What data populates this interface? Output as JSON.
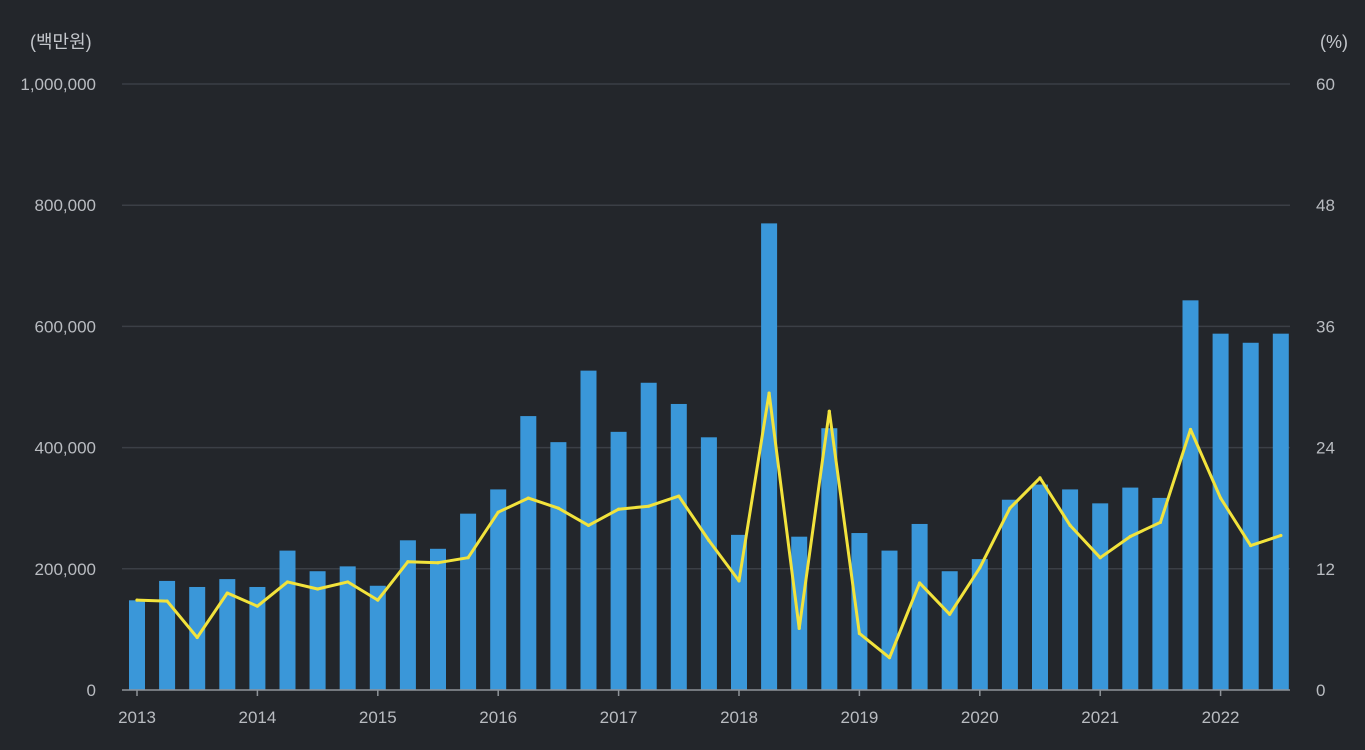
{
  "chart_data": {
    "type": "bar+line",
    "left_unit": "(백만원)",
    "right_unit": "(%)",
    "left_ylim": [
      0,
      1000000
    ],
    "right_ylim": [
      0,
      60
    ],
    "left_ticks": [
      "0",
      "200,000",
      "400,000",
      "600,000",
      "800,000",
      "1,000,000"
    ],
    "right_ticks": [
      "0",
      "12",
      "24",
      "36",
      "48",
      "60"
    ],
    "year_labels": [
      "2013",
      "2014",
      "2015",
      "2016",
      "2017",
      "2018",
      "2019",
      "2020",
      "2021",
      "2022"
    ],
    "quarters": [
      "2013Q1",
      "2013Q2",
      "2013Q3",
      "2013Q4",
      "2014Q1",
      "2014Q2",
      "2014Q3",
      "2014Q4",
      "2015Q1",
      "2015Q2",
      "2015Q3",
      "2015Q4",
      "2016Q1",
      "2016Q2",
      "2016Q3",
      "2016Q4",
      "2017Q1",
      "2017Q2",
      "2017Q3",
      "2017Q4",
      "2018Q1",
      "2018Q2",
      "2018Q3",
      "2018Q4",
      "2019Q1",
      "2019Q2",
      "2019Q3",
      "2019Q4",
      "2020Q1",
      "2020Q2",
      "2020Q3",
      "2020Q4",
      "2021Q1",
      "2021Q2",
      "2021Q3",
      "2021Q4",
      "2022Q1",
      "2022Q2",
      "2022Q3"
    ],
    "series": [
      {
        "name": "bar",
        "axis": "left",
        "color": "#3a97d9",
        "values": [
          148000,
          180000,
          170000,
          183000,
          170000,
          230000,
          196000,
          204000,
          172000,
          247000,
          233000,
          291000,
          331000,
          452000,
          409000,
          527000,
          426000,
          507000,
          472000,
          417000,
          256000,
          770000,
          253000,
          432000,
          259000,
          230000,
          274000,
          196000,
          216000,
          314000,
          339000,
          331000,
          308000,
          334000,
          317000,
          643000,
          588000,
          573000,
          588000
        ]
      },
      {
        "name": "line",
        "axis": "right",
        "color": "#f2e33c",
        "values": [
          8.9,
          8.8,
          5.2,
          9.6,
          8.3,
          10.7,
          10.0,
          10.7,
          8.9,
          12.7,
          12.6,
          13.1,
          17.6,
          19.0,
          18.0,
          16.3,
          17.9,
          18.2,
          19.2,
          14.8,
          10.8,
          29.4,
          6.1,
          27.6,
          5.6,
          3.2,
          10.6,
          7.5,
          12.1,
          18.0,
          21.0,
          16.3,
          13.1,
          15.2,
          16.6,
          25.8,
          19.0,
          14.3,
          15.3
        ]
      }
    ],
    "grid": true,
    "legend": "none"
  }
}
